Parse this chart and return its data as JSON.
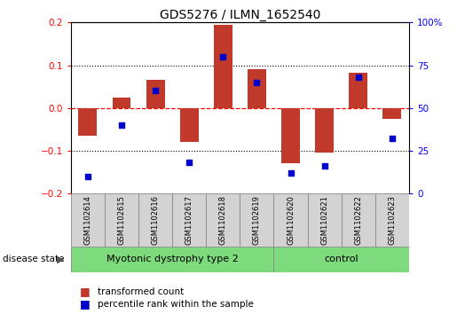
{
  "title": "GDS5276 / ILMN_1652540",
  "samples": [
    "GSM1102614",
    "GSM1102615",
    "GSM1102616",
    "GSM1102617",
    "GSM1102618",
    "GSM1102619",
    "GSM1102620",
    "GSM1102621",
    "GSM1102622",
    "GSM1102623"
  ],
  "transformed_count": [
    -0.065,
    0.025,
    0.065,
    -0.08,
    0.195,
    0.09,
    -0.13,
    -0.105,
    0.082,
    -0.025
  ],
  "percentile_rank": [
    10,
    40,
    60,
    18,
    80,
    65,
    12,
    16,
    68,
    32
  ],
  "disease_groups": [
    {
      "label": "Myotonic dystrophy type 2",
      "start": 0,
      "end": 6,
      "color": "#7dda7d"
    },
    {
      "label": "control",
      "start": 6,
      "end": 10,
      "color": "#7dda7d"
    }
  ],
  "bar_color": "#c0392b",
  "dot_color": "#0000cc",
  "ylim_left": [
    -0.2,
    0.2
  ],
  "ylim_right": [
    0,
    100
  ],
  "yticks_left": [
    -0.2,
    -0.1,
    0.0,
    0.1,
    0.2
  ],
  "yticks_right": [
    0,
    25,
    50,
    75,
    100
  ],
  "hline_dotted": [
    0.1,
    -0.1
  ],
  "hline_red_dashed": 0.0,
  "disease_state_label": "disease state",
  "legend_items": [
    {
      "label": "transformed count",
      "color": "#c0392b"
    },
    {
      "label": "percentile rank within the sample",
      "color": "#0000cc"
    }
  ],
  "bg_color": "#ffffff",
  "sample_box_color": "#d3d3d3",
  "title_fontsize": 10,
  "tick_fontsize": 7.5,
  "sample_fontsize": 6,
  "group_fontsize": 8,
  "legend_fontsize": 7.5
}
